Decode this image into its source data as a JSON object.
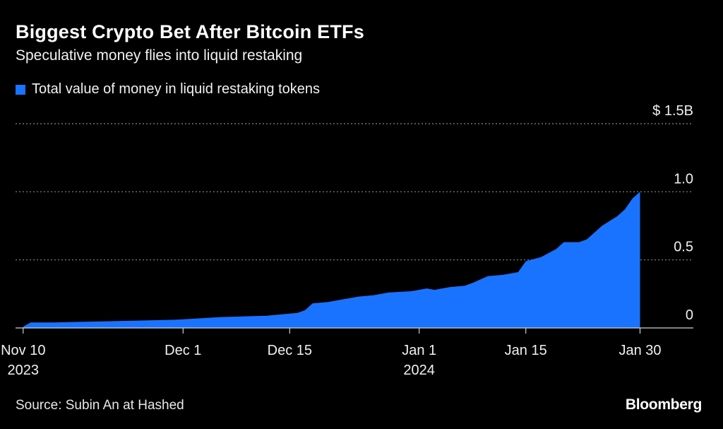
{
  "header": {
    "title": "Biggest Crypto Bet After Bitcoin ETFs",
    "subtitle": "Speculative money flies into liquid restaking"
  },
  "footer": {
    "source": "Source: Subin An at Hashed",
    "brand": "Bloomberg"
  },
  "colors": {
    "background": "#000000",
    "series": "#1a73ff",
    "grid": "#8a8a8a",
    "text": "#ffffff"
  },
  "chart_data": {
    "type": "area",
    "title": "Biggest Crypto Bet After Bitcoin ETFs",
    "subtitle": "Speculative money flies into liquid restaking",
    "xlabel": "",
    "ylabel": "",
    "ylim": [
      0,
      1.5
    ],
    "xlim": [
      "2023-11-09",
      "2024-02-06"
    ],
    "grid": true,
    "legend_position": "top-left",
    "y_ticks": [
      {
        "value": 0,
        "label": "0"
      },
      {
        "value": 0.5,
        "label": "0.5"
      },
      {
        "value": 1.0,
        "label": "1.0"
      },
      {
        "value": 1.5,
        "label": "$ 1.5B"
      }
    ],
    "x_ticks": [
      {
        "date": "2023-11-10",
        "label": "Nov 10",
        "sublabel": "2023"
      },
      {
        "date": "2023-12-01",
        "label": "Dec 1",
        "sublabel": ""
      },
      {
        "date": "2023-12-15",
        "label": "Dec 15",
        "sublabel": ""
      },
      {
        "date": "2024-01-01",
        "label": "Jan 1",
        "sublabel": "2024"
      },
      {
        "date": "2024-01-15",
        "label": "Jan 15",
        "sublabel": ""
      },
      {
        "date": "2024-01-30",
        "label": "Jan 30",
        "sublabel": ""
      }
    ],
    "series": [
      {
        "name": "Total value of money in liquid restaking tokens",
        "points": [
          [
            "2023-11-10",
            0.01
          ],
          [
            "2023-11-11",
            0.04
          ],
          [
            "2023-11-14",
            0.04
          ],
          [
            "2023-11-18",
            0.045
          ],
          [
            "2023-11-22",
            0.05
          ],
          [
            "2023-11-26",
            0.055
          ],
          [
            "2023-11-30",
            0.06
          ],
          [
            "2023-12-03",
            0.07
          ],
          [
            "2023-12-06",
            0.08
          ],
          [
            "2023-12-09",
            0.085
          ],
          [
            "2023-12-12",
            0.09
          ],
          [
            "2023-12-14",
            0.1
          ],
          [
            "2023-12-16",
            0.11
          ],
          [
            "2023-12-17",
            0.13
          ],
          [
            "2023-12-18",
            0.18
          ],
          [
            "2023-12-20",
            0.19
          ],
          [
            "2023-12-22",
            0.21
          ],
          [
            "2023-12-24",
            0.23
          ],
          [
            "2023-12-26",
            0.24
          ],
          [
            "2023-12-28",
            0.26
          ],
          [
            "2023-12-31",
            0.27
          ],
          [
            "2024-01-02",
            0.29
          ],
          [
            "2024-01-03",
            0.28
          ],
          [
            "2024-01-05",
            0.3
          ],
          [
            "2024-01-07",
            0.31
          ],
          [
            "2024-01-08",
            0.33
          ],
          [
            "2024-01-10",
            0.38
          ],
          [
            "2024-01-12",
            0.39
          ],
          [
            "2024-01-14",
            0.41
          ],
          [
            "2024-01-15",
            0.49
          ],
          [
            "2024-01-17",
            0.52
          ],
          [
            "2024-01-19",
            0.58
          ],
          [
            "2024-01-20",
            0.63
          ],
          [
            "2024-01-22",
            0.63
          ],
          [
            "2024-01-23",
            0.65
          ],
          [
            "2024-01-25",
            0.75
          ],
          [
            "2024-01-27",
            0.82
          ],
          [
            "2024-01-28",
            0.87
          ],
          [
            "2024-01-29",
            0.95
          ],
          [
            "2024-01-30",
            1.0
          ]
        ]
      }
    ]
  }
}
